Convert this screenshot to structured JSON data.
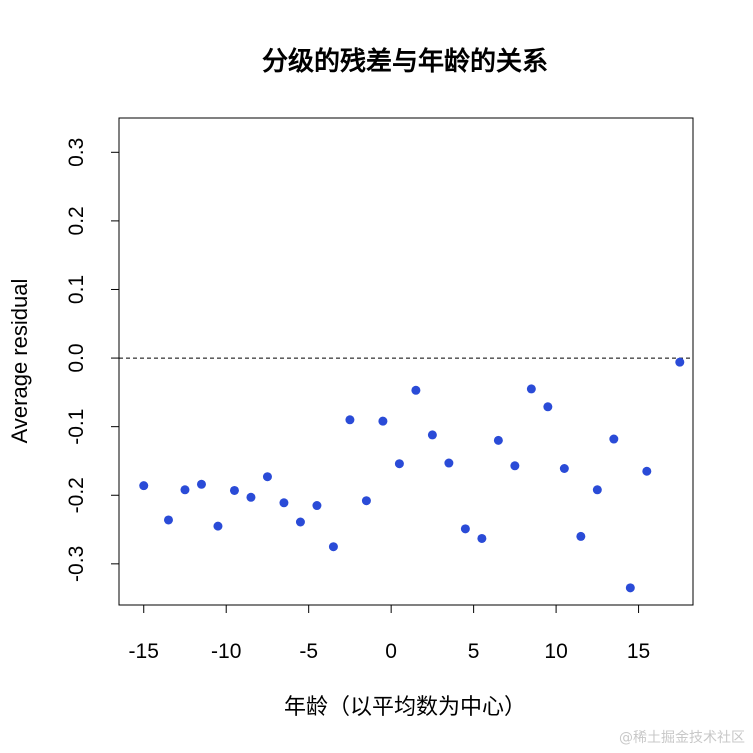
{
  "chart_data": {
    "type": "scatter",
    "title": "分级的残差与年龄的关系",
    "xlabel": "年龄（以平均数为中心）",
    "ylabel": "Average residual",
    "xlim": [
      -16.5,
      18.3
    ],
    "ylim": [
      -0.36,
      0.35
    ],
    "x_ticks": [
      -15,
      -10,
      -5,
      0,
      5,
      10,
      15
    ],
    "x_tick_labels": [
      "-15",
      "-10",
      "-5",
      "0",
      "5",
      "10",
      "15"
    ],
    "y_ticks": [
      -0.3,
      -0.2,
      -0.1,
      0.0,
      0.1,
      0.2,
      0.3
    ],
    "y_tick_labels": [
      "-0.3",
      "-0.2",
      "-0.1",
      "0.0",
      "0.1",
      "0.2",
      "0.3"
    ],
    "reference_line": {
      "y": 0.0,
      "style": "dashed"
    },
    "point_color": "#2a4bd7",
    "points": [
      {
        "x": -15.0,
        "y": -0.186
      },
      {
        "x": -13.5,
        "y": -0.236
      },
      {
        "x": -12.5,
        "y": -0.192
      },
      {
        "x": -11.5,
        "y": -0.184
      },
      {
        "x": -10.5,
        "y": -0.245
      },
      {
        "x": -9.5,
        "y": -0.193
      },
      {
        "x": -8.5,
        "y": -0.203
      },
      {
        "x": -7.5,
        "y": -0.173
      },
      {
        "x": -6.5,
        "y": -0.211
      },
      {
        "x": -5.5,
        "y": -0.239
      },
      {
        "x": -4.5,
        "y": -0.215
      },
      {
        "x": -3.5,
        "y": -0.275
      },
      {
        "x": -2.5,
        "y": -0.09
      },
      {
        "x": -1.5,
        "y": -0.208
      },
      {
        "x": -0.5,
        "y": -0.092
      },
      {
        "x": 0.5,
        "y": -0.154
      },
      {
        "x": 1.5,
        "y": -0.047
      },
      {
        "x": 2.5,
        "y": -0.112
      },
      {
        "x": 3.5,
        "y": -0.153
      },
      {
        "x": 4.5,
        "y": -0.249
      },
      {
        "x": 5.5,
        "y": -0.263
      },
      {
        "x": 6.5,
        "y": -0.12
      },
      {
        "x": 7.5,
        "y": -0.157
      },
      {
        "x": 8.5,
        "y": -0.045
      },
      {
        "x": 9.5,
        "y": -0.071
      },
      {
        "x": 10.5,
        "y": -0.161
      },
      {
        "x": 11.5,
        "y": -0.26
      },
      {
        "x": 12.5,
        "y": -0.192
      },
      {
        "x": 13.5,
        "y": -0.118
      },
      {
        "x": 14.5,
        "y": -0.335
      },
      {
        "x": 15.5,
        "y": -0.165
      },
      {
        "x": 17.5,
        "y": -0.006
      }
    ]
  },
  "watermark": "@稀土掘金技术社区"
}
